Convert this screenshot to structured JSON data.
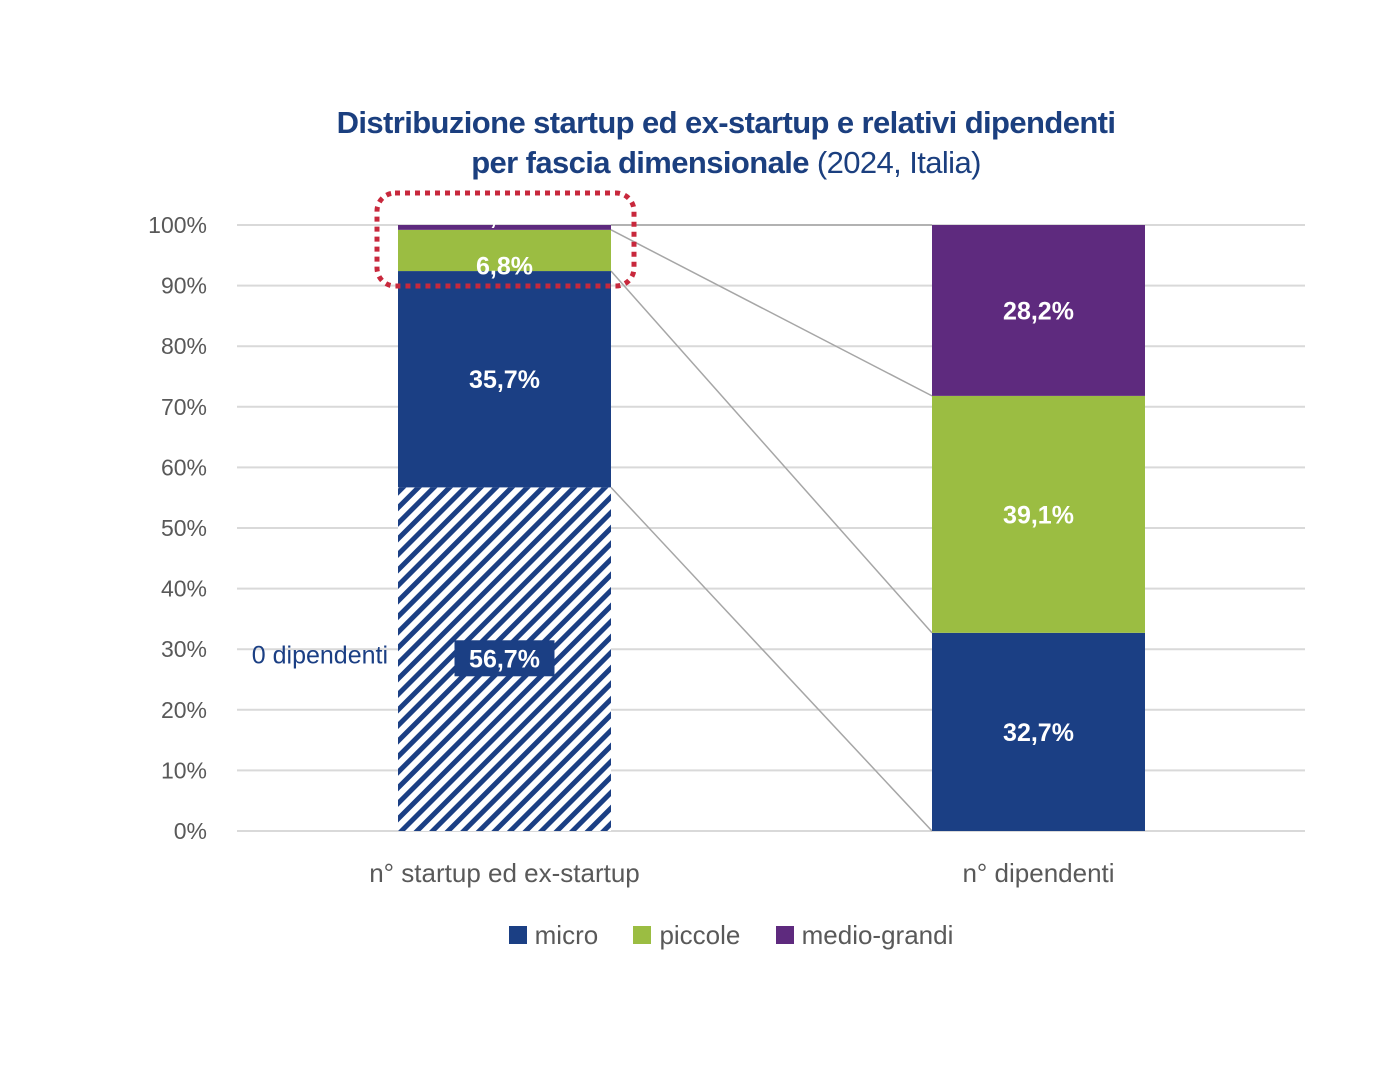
{
  "chart_data": {
    "type": "bar",
    "stacked": true,
    "title": "Distribuzione startup ed ex-startup e relativi dipendenti",
    "title_line2_bold": "per fascia dimensionale",
    "title_line2_light": "(2024, Italia)",
    "categories": [
      "n° startup ed ex-startup",
      "n° dipendenti"
    ],
    "yticks": [
      "0%",
      "10%",
      "20%",
      "30%",
      "40%",
      "50%",
      "60%",
      "70%",
      "80%",
      "90%",
      "100%"
    ],
    "ylim": [
      0,
      100
    ],
    "grid": true,
    "series": [
      {
        "name": "0 dipendenti (micro)",
        "key": "zero",
        "values": [
          56.7,
          0
        ],
        "labels": [
          "56,7%",
          ""
        ],
        "color": "#1b3f84",
        "pattern": "hatched"
      },
      {
        "name": "micro",
        "key": "micro",
        "values": [
          35.7,
          32.7
        ],
        "labels": [
          "35,7%",
          "32,7%"
        ],
        "color": "#1b3f84"
      },
      {
        "name": "piccole",
        "key": "piccole",
        "values": [
          6.8,
          39.1
        ],
        "labels": [
          "6,8%",
          "39,1%"
        ],
        "color": "#9bbd42"
      },
      {
        "name": "medio-grandi",
        "key": "medio",
        "values": [
          0.8,
          28.2
        ],
        "labels": [
          "0,8%",
          "28,2%"
        ],
        "color": "#5e2a7e"
      }
    ],
    "annotations": {
      "zero_employees": "0 dipendenti",
      "highlight": "dotted box around piccole and medio-grandi on first bar"
    },
    "legend": {
      "position": "bottom",
      "items": [
        {
          "label": "micro",
          "color": "#1b3f84"
        },
        {
          "label": "piccole",
          "color": "#9bbd42"
        },
        {
          "label": "medio-grandi",
          "color": "#5e2a7e"
        }
      ]
    },
    "colors": {
      "title": "#1b3f7f",
      "axis_text": "#595959",
      "grid": "#d9d9d9",
      "connector": "#a6a6a6",
      "highlight": "#c8283c"
    }
  }
}
